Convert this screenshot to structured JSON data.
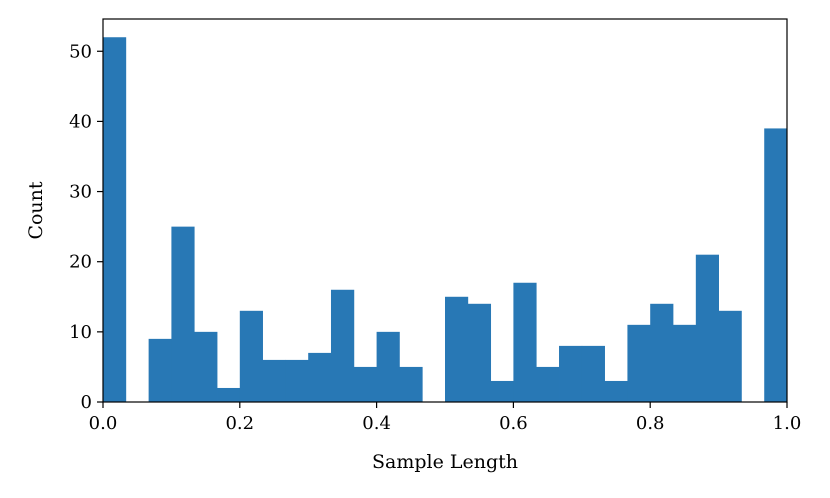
{
  "chart_data": {
    "type": "bar",
    "subtype": "histogram",
    "title": "",
    "xlabel": "Sample Length",
    "ylabel": "Count",
    "xlim": [
      0.0,
      1.0
    ],
    "ylim": [
      0,
      54.6
    ],
    "bin_edges": [
      0.0,
      0.0333,
      0.0667,
      0.1,
      0.1333,
      0.1667,
      0.2,
      0.2333,
      0.2667,
      0.3,
      0.3333,
      0.3667,
      0.4,
      0.4333,
      0.4667,
      0.5,
      0.5333,
      0.5667,
      0.6,
      0.6333,
      0.6667,
      0.7,
      0.7333,
      0.7667,
      0.8,
      0.8333,
      0.8667,
      0.9,
      0.9333,
      0.9667,
      1.0
    ],
    "values": [
      52,
      0,
      9,
      25,
      10,
      2,
      13,
      6,
      6,
      7,
      16,
      5,
      10,
      5,
      0,
      15,
      14,
      3,
      17,
      5,
      8,
      8,
      3,
      11,
      14,
      11,
      21,
      13,
      0,
      39
    ],
    "x_ticks": [
      "0.0",
      "0.2",
      "0.4",
      "0.6",
      "0.8",
      "1.0"
    ],
    "x_tick_values": [
      0.0,
      0.2,
      0.4,
      0.6,
      0.8,
      1.0
    ],
    "y_ticks": [
      "0",
      "10",
      "20",
      "30",
      "40",
      "50"
    ],
    "y_tick_values": [
      0,
      10,
      20,
      30,
      40,
      50
    ],
    "bar_color": "#2878b5",
    "grid": false,
    "legend": "none"
  }
}
